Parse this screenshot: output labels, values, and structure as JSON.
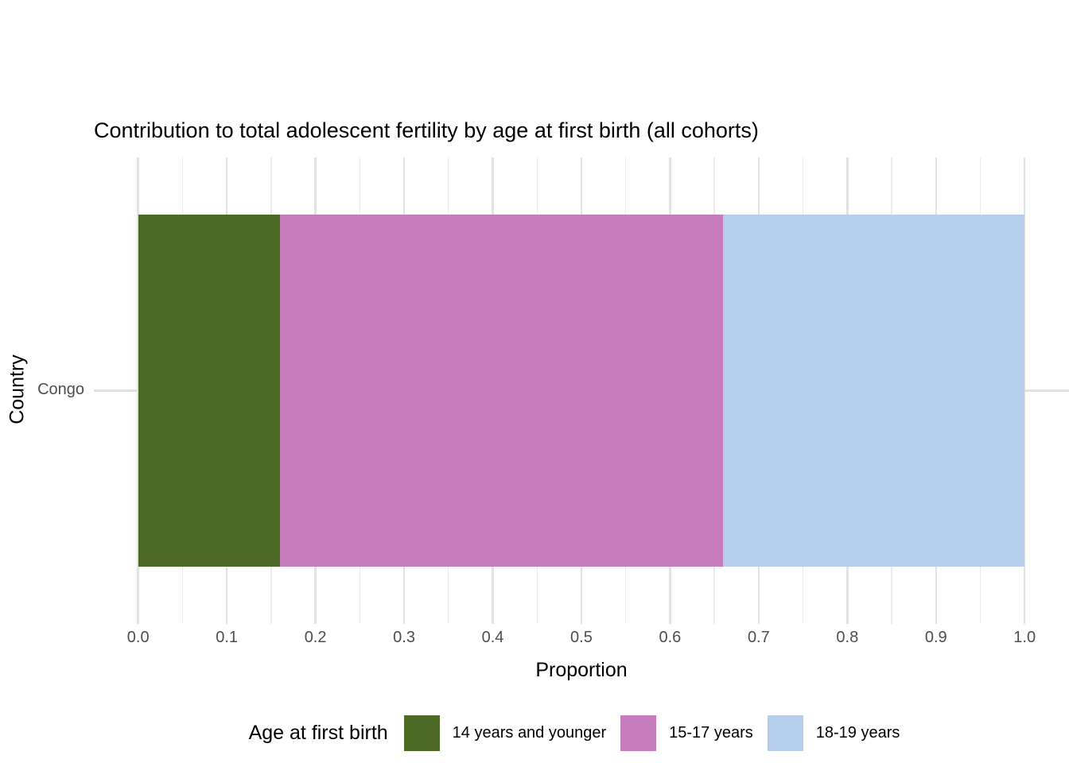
{
  "chart_data": {
    "type": "bar",
    "stacked": true,
    "orientation": "horizontal",
    "title": "Contribution to total adolescent fertility by age at first birth (all cohorts)",
    "xlabel": "Proportion",
    "ylabel": "Country",
    "categories": [
      "Congo"
    ],
    "series": [
      {
        "name": "14 years and younger",
        "color": "#4C6A25",
        "values": [
          0.16
        ]
      },
      {
        "name": "15-17 years",
        "color": "#C77CBE",
        "values": [
          0.5
        ]
      },
      {
        "name": "18-19 years",
        "color": "#B5CEEC",
        "values": [
          0.34
        ]
      }
    ],
    "xlim": [
      0,
      1
    ],
    "x_tick_labels": [
      "0.0",
      "0.1",
      "0.2",
      "0.3",
      "0.4",
      "0.5",
      "0.6",
      "0.7",
      "0.8",
      "0.9",
      "1.0"
    ],
    "grid": {
      "show": true,
      "major_step": 0.1,
      "minor_step": 0.05,
      "major_color": "#E2E2E2",
      "minor_color": "#ECECEC"
    },
    "legend": {
      "title": "Age at first birth",
      "position": "bottom"
    },
    "text_colors": {
      "title": "#000000",
      "axis_title": "#000000",
      "tick_label": "#4D4D4D"
    }
  }
}
